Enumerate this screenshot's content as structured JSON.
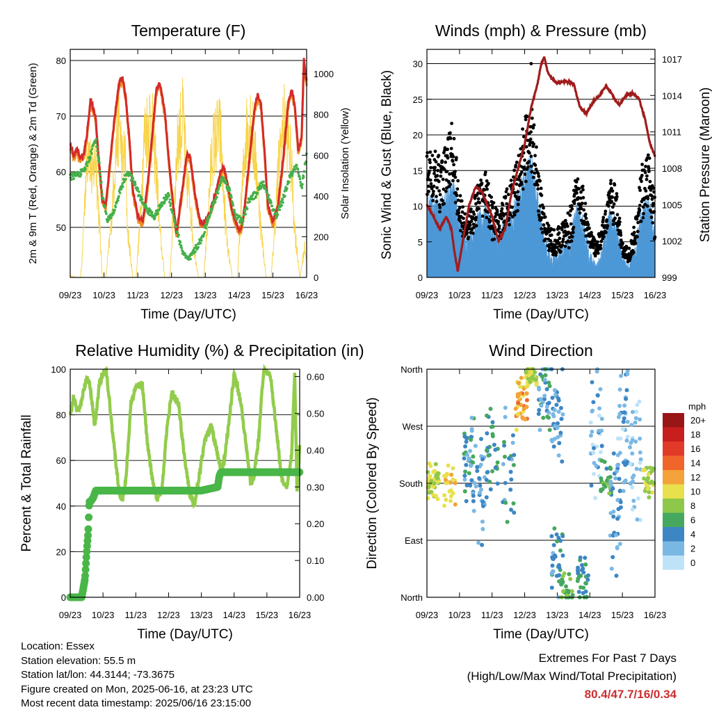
{
  "x_ticks": [
    "09/23",
    "10/23",
    "11/23",
    "12/23",
    "13/23",
    "14/23",
    "15/23",
    "16/23"
  ],
  "info": {
    "location": "Location: Essex",
    "elevation": "Station elevation: 55.5 m",
    "latlon": "Station lat/lon: 44.3144; -73.3675",
    "created": "Figure created on Mon, 2025-06-16, at 23:23 UTC",
    "recent": "Most recent data timestamp: 2025/06/16 23:15:00"
  },
  "extremes": {
    "title": "Extremes For Past 7 Days",
    "subtitle": "(High/Low/Max Wind/Total Precipitation)",
    "values": "80.4/47.7/16/0.34"
  },
  "colors": {
    "temp_2m": "#d42a2a",
    "temp_9m": "#f08c1e",
    "dewpoint": "#44b04a",
    "solar": "#f7d44c",
    "wind": "#4c97d6",
    "gust": "#000000",
    "pressure": "#a01c1c",
    "rh": "#92cc4c",
    "precip": "#49b648"
  },
  "chart_data": [
    {
      "type": "line",
      "title": "Temperature (F)",
      "xlabel": "Time (Day/UTC)",
      "ylabel": "2m & 9m T (Red, Orange) & 2m Td (Green)",
      "y2label": "Solar Insolation (Yellow)",
      "x_range": [
        9,
        16
      ],
      "ylim": [
        41,
        82
      ],
      "y_ticks": [
        50,
        60,
        70,
        80
      ],
      "y2lim": [
        0,
        1120
      ],
      "y2_ticks": [
        0,
        200,
        400,
        600,
        800,
        1000
      ],
      "series": [
        {
          "key": "temp",
          "x": [
            9.0,
            9.1,
            9.2,
            9.3,
            9.4,
            9.5,
            9.6,
            9.75,
            9.85,
            9.95,
            10.05,
            10.15,
            10.3,
            10.45,
            10.55,
            10.65,
            10.75,
            10.85,
            11.0,
            11.15,
            11.3,
            11.45,
            11.55,
            11.65,
            11.8,
            11.95,
            12.05,
            12.15,
            12.3,
            12.45,
            12.55,
            12.65,
            12.75,
            12.85,
            13.0,
            13.15,
            13.3,
            13.45,
            13.55,
            13.65,
            13.8,
            13.95,
            14.05,
            14.15,
            14.3,
            14.45,
            14.55,
            14.65,
            14.75,
            14.85,
            15.0,
            15.15,
            15.3,
            15.45,
            15.55,
            15.65,
            15.75,
            15.85,
            15.92,
            16.0
          ],
          "y": [
            65,
            63,
            64,
            62.5,
            63,
            67,
            73,
            70,
            62,
            55,
            54,
            60,
            69,
            76,
            77,
            73,
            66,
            57,
            52,
            51,
            58,
            68,
            75,
            76,
            71,
            60,
            54,
            49,
            56,
            63,
            63,
            58,
            54,
            51,
            51,
            53,
            56,
            60,
            61,
            58,
            53,
            50,
            49.5,
            53,
            62,
            71,
            74,
            72,
            64,
            54,
            51,
            54,
            62,
            72,
            75,
            72,
            64,
            66,
            80.4,
            76
          ]
        },
        {
          "key": "dewpoint",
          "x": [
            9.0,
            9.2,
            9.4,
            9.6,
            9.75,
            9.85,
            9.95,
            10.1,
            10.3,
            10.5,
            10.7,
            10.9,
            11.1,
            11.3,
            11.5,
            11.7,
            11.9,
            12.1,
            12.3,
            12.5,
            12.7,
            12.9,
            13.1,
            13.3,
            13.5,
            13.7,
            13.9,
            14.1,
            14.3,
            14.5,
            14.7,
            14.9,
            15.1,
            15.3,
            15.5,
            15.7,
            15.85,
            16.0
          ],
          "y": [
            59,
            59.5,
            60,
            63,
            66,
            62,
            56,
            51,
            53,
            57,
            60,
            58,
            55,
            53,
            52,
            54,
            56,
            51,
            46,
            44,
            46,
            48,
            52,
            55,
            59,
            57,
            52,
            51,
            55,
            56,
            58,
            55,
            52,
            55,
            59,
            61,
            57,
            63
          ]
        },
        {
          "key": "solar",
          "x": [
            9.0,
            9.1,
            9.2,
            9.3,
            9.35,
            9.45,
            9.55,
            9.65,
            9.75,
            9.85,
            9.95,
            10.05,
            10.2,
            10.35,
            10.45,
            10.55,
            10.62,
            10.7,
            10.85,
            10.95,
            11.05,
            11.2,
            11.35,
            11.45,
            11.55,
            11.65,
            11.8,
            11.95,
            12.05,
            12.2,
            12.35,
            12.45,
            12.55,
            12.65,
            12.8,
            12.95,
            13.05,
            13.2,
            13.35,
            13.45,
            13.55,
            13.65,
            13.8,
            13.95,
            14.05,
            14.2,
            14.35,
            14.45,
            14.55,
            14.65,
            14.8,
            14.95,
            15.05,
            15.2,
            15.35,
            15.45,
            15.55,
            15.65,
            15.8,
            15.95,
            16.0
          ],
          "y": [
            10,
            5,
            0,
            0,
            100,
            600,
            900,
            600,
            800,
            400,
            0,
            0,
            300,
            800,
            1020,
            700,
            800,
            300,
            0,
            0,
            300,
            900,
            1000,
            900,
            700,
            300,
            0,
            0,
            400,
            900,
            1000,
            600,
            500,
            200,
            0,
            0,
            300,
            800,
            900,
            900,
            500,
            200,
            0,
            0,
            400,
            900,
            1000,
            800,
            600,
            300,
            0,
            0,
            300,
            800,
            980,
            900,
            700,
            300,
            0,
            200,
            100
          ]
        }
      ]
    },
    {
      "type": "scatter",
      "title": "Winds (mph) & Pressure (mb)",
      "xlabel": "Time (Day/UTC)",
      "ylabel": "Sonic Wind & Gust (Blue, Black)",
      "y2label": "Station Pressure (Maroon)",
      "x_range": [
        9,
        16
      ],
      "ylim": [
        0,
        32
      ],
      "y_ticks": [
        0,
        5,
        10,
        15,
        20,
        25,
        30
      ],
      "y2lim": [
        999,
        1017.8
      ],
      "y2_ticks": [
        999,
        1002,
        1005,
        1008,
        1011,
        1014,
        1017
      ],
      "series": [
        {
          "key": "wind",
          "x": [
            9.0,
            9.2,
            9.4,
            9.6,
            9.8,
            10.0,
            10.2,
            10.4,
            10.6,
            10.8,
            11.0,
            11.2,
            11.4,
            11.6,
            11.8,
            12.0,
            12.2,
            12.4,
            12.6,
            12.8,
            13.0,
            13.2,
            13.4,
            13.6,
            13.8,
            14.0,
            14.2,
            14.4,
            14.6,
            14.8,
            15.0,
            15.2,
            15.4,
            15.6,
            15.8,
            16.0
          ],
          "y": [
            10,
            9,
            8,
            10,
            11,
            6,
            4,
            5,
            7,
            8,
            5,
            4,
            6,
            7,
            9,
            12,
            14,
            9,
            4,
            2,
            2,
            3,
            4,
            8,
            6,
            2,
            1,
            3,
            7,
            6,
            2,
            1,
            3,
            8,
            9,
            5
          ],
          "amp": [
            3,
            3,
            3,
            3,
            4,
            3,
            2,
            2,
            3,
            3,
            3,
            2,
            3,
            3,
            4,
            4,
            4,
            4,
            2,
            2,
            2,
            2,
            3,
            3,
            3,
            2,
            1,
            2,
            3,
            3,
            1,
            1,
            2,
            3,
            3,
            3
          ]
        },
        {
          "key": "gust",
          "x": [
            9.0,
            9.2,
            9.4,
            9.6,
            9.8,
            10.0,
            10.2,
            10.4,
            10.6,
            10.8,
            11.0,
            11.2,
            11.4,
            11.6,
            11.8,
            12.0,
            12.2,
            12.4,
            12.6,
            12.8,
            13.0,
            13.2,
            13.4,
            13.6,
            13.8,
            14.0,
            14.2,
            14.4,
            14.6,
            14.8,
            15.0,
            15.2,
            15.4,
            15.6,
            15.8,
            16.0
          ],
          "y": [
            15,
            14,
            13,
            15,
            18,
            9,
            7,
            8,
            11,
            12,
            8,
            7,
            9,
            11,
            13,
            18,
            20,
            13,
            7,
            5,
            5,
            6,
            7,
            12,
            10,
            5,
            4,
            6,
            11,
            10,
            4,
            3,
            6,
            12,
            14,
            8
          ],
          "amp": [
            4,
            4,
            4,
            4,
            5,
            3,
            2,
            2,
            3,
            3,
            3,
            2,
            3,
            3,
            4,
            5,
            5,
            4,
            2,
            2,
            2,
            2,
            3,
            3,
            3,
            2,
            1,
            2,
            3,
            3,
            1,
            1,
            2,
            4,
            4,
            3
          ]
        },
        {
          "key": "pressure",
          "x": [
            9.0,
            9.2,
            9.4,
            9.6,
            9.75,
            9.85,
            9.95,
            10.1,
            10.3,
            10.5,
            10.7,
            10.85,
            11.0,
            11.2,
            11.4,
            11.6,
            11.8,
            12.0,
            12.2,
            12.4,
            12.5,
            12.6,
            12.7,
            12.8,
            13.0,
            13.2,
            13.5,
            13.7,
            13.9,
            14.1,
            14.3,
            14.5,
            14.7,
            14.9,
            15.1,
            15.3,
            15.5,
            15.7,
            15.85,
            16.0
          ],
          "y": [
            1005,
            1004,
            1003,
            1004,
            1003,
            1001,
            999.5,
            1002,
            1005,
            1006.5,
            1006,
            1005,
            1004,
            1002,
            1003,
            1006,
            1008,
            1010,
            1013,
            1015,
            1016.5,
            1017.2,
            1016,
            1015.5,
            1015,
            1015.2,
            1015,
            1013,
            1012.5,
            1013.5,
            1014,
            1014.8,
            1014,
            1013.2,
            1014,
            1014.2,
            1013.8,
            1012,
            1010,
            1009
          ]
        }
      ]
    },
    {
      "type": "line",
      "title": "Relative Humidity (%) & Precipitation (in)",
      "xlabel": "Time (Day/UTC)",
      "ylabel": "Percent & Total Rainfall",
      "x_range": [
        9,
        16
      ],
      "ylim": [
        0,
        100
      ],
      "y_ticks": [
        0,
        20,
        40,
        60,
        80,
        100
      ],
      "y2lim": [
        0,
        0.62
      ],
      "y2_ticks": [
        "0.00",
        "0.10",
        "0.20",
        "0.30",
        "0.40",
        "0.50",
        "0.60"
      ],
      "series": [
        {
          "key": "rh",
          "x": [
            9.0,
            9.1,
            9.2,
            9.3,
            9.4,
            9.5,
            9.6,
            9.75,
            9.9,
            10.1,
            10.25,
            10.4,
            10.5,
            10.6,
            10.7,
            10.85,
            11.0,
            11.2,
            11.35,
            11.5,
            11.65,
            11.8,
            11.95,
            12.1,
            12.3,
            12.5,
            12.65,
            12.8,
            12.95,
            13.1,
            13.3,
            13.5,
            13.6,
            13.7,
            13.85,
            14.0,
            14.2,
            14.4,
            14.5,
            14.6,
            14.75,
            14.9,
            15.1,
            15.3,
            15.45,
            15.6,
            15.75,
            15.85,
            15.92,
            16.0
          ],
          "y": [
            79,
            88,
            82,
            83,
            90,
            96,
            93,
            75,
            95,
            100,
            78,
            58,
            45,
            43,
            52,
            85,
            92,
            94,
            68,
            52,
            43,
            47,
            74,
            90,
            85,
            60,
            45,
            40,
            55,
            68,
            76,
            62,
            55,
            60,
            78,
            98,
            86,
            62,
            50,
            52,
            70,
            100,
            98,
            72,
            52,
            48,
            62,
            99,
            45,
            66
          ]
        },
        {
          "key": "precip",
          "x": [
            9.0,
            9.3,
            9.35,
            9.45,
            9.5,
            9.55,
            9.58,
            9.62,
            9.7,
            9.78,
            9.82,
            10.0,
            10.5,
            11.0,
            12.0,
            12.5,
            13.0,
            13.5,
            13.55,
            13.6,
            13.7,
            14.0,
            14.5,
            15.0,
            15.5,
            16.0
          ],
          "y": [
            0.0,
            0.0,
            0.0,
            0.05,
            0.12,
            0.18,
            0.26,
            0.26,
            0.27,
            0.29,
            0.29,
            0.29,
            0.29,
            0.29,
            0.29,
            0.29,
            0.29,
            0.3,
            0.33,
            0.34,
            0.34,
            0.34,
            0.34,
            0.34,
            0.34,
            0.34
          ]
        }
      ]
    },
    {
      "type": "scatter",
      "title": "Wind Direction",
      "xlabel": "Time (Day/UTC)",
      "ylabel": "Direction (Colored By Speed)",
      "x_range": [
        9,
        16
      ],
      "ylim": [
        0,
        360
      ],
      "y_ticks": [
        "North",
        "East",
        "South",
        "West",
        "North"
      ],
      "legend_title": "mph",
      "legend_labels": [
        "20+",
        "18",
        "16",
        "14",
        "12",
        "10",
        "8",
        "6",
        "4",
        "2",
        "0"
      ],
      "legend_colors": [
        "#991616",
        "#c91e1e",
        "#e23a28",
        "#f0652a",
        "#f4a23a",
        "#e8e04c",
        "#8ec84a",
        "#46a85e",
        "#3d86c4",
        "#7ab8e4",
        "#bee3f8"
      ],
      "clusters": [
        {
          "x": 9.2,
          "dir": 180,
          "sd": 0.1,
          "spd": 9,
          "n": 40
        },
        {
          "x": 9.7,
          "dir": 175,
          "sd": 0.1,
          "spd": 11,
          "n": 25
        },
        {
          "x": 10.3,
          "dir": 210,
          "sd": 0.25,
          "spd": 4,
          "n": 40
        },
        {
          "x": 10.6,
          "dir": 160,
          "sd": 0.3,
          "spd": 3,
          "n": 30
        },
        {
          "x": 11.0,
          "dir": 220,
          "sd": 0.25,
          "spd": 5,
          "n": 30
        },
        {
          "x": 11.5,
          "dir": 200,
          "sd": 0.3,
          "spd": 4,
          "n": 25
        },
        {
          "x": 11.9,
          "dir": 305,
          "sd": 0.12,
          "spd": 12,
          "n": 40
        },
        {
          "x": 12.2,
          "dir": 350,
          "sd": 0.05,
          "spd": 9,
          "n": 45
        },
        {
          "x": 12.6,
          "dir": 320,
          "sd": 0.2,
          "spd": 4,
          "n": 35
        },
        {
          "x": 13.0,
          "dir": 300,
          "sd": 0.25,
          "spd": 3,
          "n": 35
        },
        {
          "x": 13.0,
          "dir": 50,
          "sd": 0.2,
          "spd": 4,
          "n": 35
        },
        {
          "x": 13.3,
          "dir": 5,
          "sd": 0.1,
          "spd": 7,
          "n": 25
        },
        {
          "x": 13.8,
          "dir": 25,
          "sd": 0.15,
          "spd": 5,
          "n": 30
        },
        {
          "x": 14.2,
          "dir": 260,
          "sd": 0.35,
          "spd": 2,
          "n": 35
        },
        {
          "x": 14.5,
          "dir": 180,
          "sd": 0.15,
          "spd": 6,
          "n": 30
        },
        {
          "x": 14.8,
          "dir": 130,
          "sd": 0.3,
          "spd": 3,
          "n": 30
        },
        {
          "x": 15.0,
          "dir": 250,
          "sd": 0.35,
          "spd": 2,
          "n": 40
        },
        {
          "x": 15.4,
          "dir": 230,
          "sd": 0.35,
          "spd": 1,
          "n": 35
        },
        {
          "x": 15.8,
          "dir": 180,
          "sd": 0.1,
          "spd": 9,
          "n": 30
        }
      ]
    }
  ]
}
